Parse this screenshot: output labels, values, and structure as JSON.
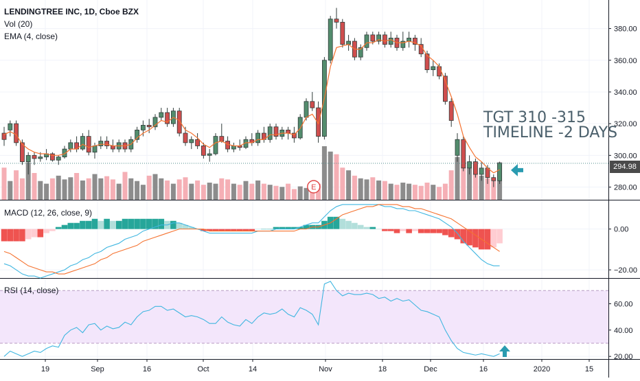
{
  "header": {
    "symbol_line": "LENDINGTREE INC, 1D, Cboe BZX",
    "volume_label": "Vol (20)",
    "ema_label": "EMA (4, close)"
  },
  "annotation": {
    "line1": "TGT 310 -315",
    "line2": "TIMELINE -2 DAYS"
  },
  "last_price": "294.98",
  "earnings_marker": "E",
  "chart_data": [
    {
      "type": "candlestick",
      "title": "LENDINGTREE INC, 1D, Cboe BZX",
      "ylim": [
        272,
        398
      ],
      "y_ticks": [
        280,
        300,
        320,
        340,
        360,
        380
      ],
      "y_tick_labels": [
        "280.00",
        "300.00",
        "320.00",
        "340.00",
        "360.00",
        "380.00"
      ],
      "x_tick_labels": [
        "19",
        "Sep",
        "16",
        "Oct",
        "14",
        "Nov",
        "18",
        "Dec",
        "16",
        "2020",
        "15"
      ],
      "candles": [
        [
          314,
          318,
          306,
          310
        ],
        [
          316,
          322,
          312,
          320
        ],
        [
          320,
          322,
          306,
          308
        ],
        [
          308,
          310,
          294,
          296
        ],
        [
          296,
          302,
          288,
          300
        ],
        [
          300,
          302,
          294,
          298
        ],
        [
          298,
          302,
          296,
          299
        ],
        [
          299,
          304,
          297,
          301
        ],
        [
          301,
          302,
          296,
          297
        ],
        [
          297,
          300,
          294,
          299
        ],
        [
          299,
          306,
          298,
          304
        ],
        [
          304,
          310,
          302,
          308
        ],
        [
          308,
          312,
          302,
          304
        ],
        [
          304,
          314,
          303,
          312
        ],
        [
          312,
          316,
          300,
          302
        ],
        [
          302,
          308,
          298,
          306
        ],
        [
          306,
          312,
          304,
          309
        ],
        [
          309,
          312,
          304,
          306
        ],
        [
          306,
          310,
          302,
          304
        ],
        [
          304,
          310,
          302,
          308
        ],
        [
          308,
          310,
          302,
          304
        ],
        [
          304,
          312,
          302,
          310
        ],
        [
          310,
          318,
          308,
          316
        ],
        [
          316,
          322,
          312,
          319
        ],
        [
          319,
          323,
          314,
          318
        ],
        [
          318,
          326,
          316,
          324
        ],
        [
          324,
          330,
          322,
          327
        ],
        [
          327,
          330,
          318,
          320
        ],
        [
          320,
          330,
          318,
          328
        ],
        [
          328,
          330,
          312,
          314
        ],
        [
          314,
          318,
          306,
          308
        ],
        [
          308,
          312,
          304,
          310
        ],
        [
          310,
          314,
          304,
          306
        ],
        [
          306,
          308,
          298,
          300
        ],
        [
          300,
          304,
          296,
          301
        ],
        [
          301,
          314,
          300,
          312
        ],
        [
          312,
          320,
          308,
          309
        ],
        [
          309,
          312,
          302,
          304
        ],
        [
          304,
          308,
          302,
          306
        ],
        [
          306,
          310,
          303,
          305
        ],
        [
          305,
          312,
          304,
          310
        ],
        [
          310,
          314,
          306,
          308
        ],
        [
          308,
          316,
          306,
          314
        ],
        [
          314,
          318,
          308,
          310
        ],
        [
          310,
          320,
          308,
          318
        ],
        [
          318,
          320,
          310,
          312
        ],
        [
          312,
          318,
          310,
          316
        ],
        [
          316,
          318,
          310,
          314
        ],
        [
          314,
          318,
          308,
          311
        ],
        [
          311,
          326,
          310,
          324
        ],
        [
          324,
          336,
          322,
          334
        ],
        [
          334,
          340,
          328,
          330
        ],
        [
          330,
          334,
          308,
          312
        ],
        [
          312,
          362,
          310,
          360
        ],
        [
          360,
          388,
          358,
          386
        ],
        [
          386,
          393,
          380,
          384
        ],
        [
          384,
          386,
          368,
          370
        ],
        [
          370,
          376,
          366,
          372
        ],
        [
          372,
          374,
          360,
          362
        ],
        [
          362,
          370,
          360,
          368
        ],
        [
          368,
          378,
          366,
          376
        ],
        [
          376,
          378,
          370,
          372
        ],
        [
          372,
          378,
          370,
          376
        ],
        [
          376,
          378,
          368,
          370
        ],
        [
          370,
          378,
          368,
          374
        ],
        [
          374,
          376,
          366,
          368
        ],
        [
          368,
          378,
          366,
          372
        ],
        [
          372,
          378,
          368,
          374
        ],
        [
          374,
          376,
          366,
          370
        ],
        [
          370,
          374,
          362,
          364
        ],
        [
          364,
          366,
          352,
          354
        ],
        [
          354,
          360,
          350,
          356
        ],
        [
          356,
          358,
          348,
          350
        ],
        [
          350,
          352,
          332,
          334
        ],
        [
          334,
          336,
          318,
          322
        ],
        [
          300,
          314,
          296,
          310
        ],
        [
          310,
          312,
          290,
          292
        ],
        [
          292,
          300,
          288,
          296
        ],
        [
          296,
          298,
          286,
          288
        ],
        [
          288,
          296,
          284,
          292
        ],
        [
          292,
          294,
          282,
          286
        ],
        [
          286,
          288,
          280,
          284
        ],
        [
          284,
          296,
          282,
          295
        ]
      ],
      "ema": [
        313,
        315,
        313,
        307,
        304,
        302,
        301,
        301,
        300,
        300,
        301,
        304,
        304,
        307,
        305,
        306,
        307,
        307,
        306,
        306,
        306,
        307,
        311,
        314,
        316,
        319,
        322,
        321,
        324,
        322,
        316,
        314,
        311,
        307,
        305,
        308,
        309,
        307,
        306,
        306,
        308,
        308,
        310,
        310,
        313,
        313,
        314,
        314,
        313,
        317,
        324,
        326,
        320,
        336,
        356,
        368,
        369,
        370,
        367,
        367,
        371,
        371,
        373,
        372,
        373,
        371,
        371,
        372,
        371,
        369,
        363,
        360,
        356,
        347,
        337,
        326,
        312,
        305,
        299,
        296,
        292,
        289,
        291
      ],
      "volume": [
        60,
        35,
        55,
        40,
        70,
        50,
        35,
        30,
        40,
        45,
        38,
        42,
        50,
        36,
        40,
        48,
        40,
        44,
        38,
        30,
        52,
        40,
        35,
        28,
        45,
        48,
        40,
        36,
        30,
        38,
        42,
        30,
        36,
        28,
        32,
        30,
        40,
        38,
        30,
        28,
        35,
        30,
        36,
        30,
        28,
        26,
        24,
        30,
        20,
        25,
        22,
        18,
        30,
        100,
        90,
        85,
        60,
        55,
        45,
        40,
        38,
        42,
        36,
        35,
        30,
        28,
        32,
        30,
        28,
        26,
        32,
        28,
        24,
        30,
        55,
        80,
        70,
        60,
        50,
        45,
        40,
        35,
        70
      ]
    },
    {
      "type": "line",
      "title": "MACD (12, 26, close, 9)",
      "ylim": [
        -24,
        14
      ],
      "y_ticks": [
        0,
        -20
      ],
      "y_tick_labels": [
        "0.00",
        "−20.00"
      ],
      "series": [
        {
          "name": "MACD",
          "values": [
            -17,
            -18,
            -20,
            -22,
            -23,
            -23,
            -24,
            -23,
            -22,
            -21,
            -20,
            -18,
            -17,
            -15,
            -14,
            -12,
            -11,
            -9,
            -8,
            -7,
            -5,
            -4,
            -3,
            -1,
            0,
            1,
            2,
            2,
            3,
            3,
            2,
            1,
            0,
            -1,
            -2,
            -2,
            -2,
            -2,
            -2,
            -2,
            -2,
            -2,
            -1,
            -1,
            -1,
            0,
            0,
            0,
            0,
            1,
            2,
            3,
            3,
            6,
            9,
            11,
            12,
            12,
            12,
            12,
            12,
            12,
            12,
            11,
            11,
            10,
            10,
            9,
            9,
            8,
            7,
            6,
            5,
            3,
            1,
            -2,
            -6,
            -9,
            -12,
            -15,
            -17,
            -18,
            -18
          ]
        },
        {
          "name": "Signal",
          "values": [
            -11,
            -12,
            -14,
            -16,
            -18,
            -19,
            -20,
            -21,
            -21,
            -22,
            -22,
            -21,
            -20,
            -19,
            -18,
            -17,
            -15,
            -14,
            -12,
            -11,
            -10,
            -9,
            -8,
            -6,
            -5,
            -4,
            -3,
            -2,
            -1,
            0,
            0,
            0,
            0,
            0,
            -1,
            -1,
            -1,
            -1,
            -1,
            -1,
            -1,
            -1,
            -1,
            -1,
            -1,
            -1,
            -1,
            -1,
            -1,
            0,
            0,
            1,
            1,
            2,
            3,
            5,
            7,
            8,
            9,
            10,
            11,
            11,
            12,
            12,
            12,
            12,
            11,
            11,
            10,
            10,
            9,
            8,
            7,
            6,
            5,
            3,
            1,
            -1,
            -3,
            -5,
            -7,
            -9,
            -11
          ]
        }
      ],
      "histogram": [
        -6,
        -6,
        -6,
        -6,
        -5,
        -4,
        -4,
        -2,
        -1,
        1,
        2,
        3,
        3,
        4,
        4,
        5,
        4,
        5,
        4,
        4,
        5,
        5,
        5,
        5,
        5,
        5,
        5,
        4,
        4,
        3,
        2,
        1,
        0,
        -1,
        -1,
        -1,
        -1,
        -1,
        -1,
        -1,
        -1,
        -1,
        0,
        0,
        0,
        1,
        1,
        1,
        1,
        1,
        2,
        2,
        2,
        4,
        6,
        6,
        5,
        4,
        3,
        2,
        1,
        1,
        0,
        -1,
        -1,
        -2,
        -1,
        -2,
        -1,
        -2,
        -2,
        -2,
        -2,
        -3,
        -4,
        -5,
        -7,
        -8,
        -9,
        -10,
        -10,
        -9,
        -7
      ]
    },
    {
      "type": "line",
      "title": "RSI (14, close)",
      "ylim": [
        18,
        79
      ],
      "y_ticks": [
        60,
        40,
        20
      ],
      "y_tick_labels": [
        "60.00",
        "40.00",
        "20.00"
      ],
      "bands": [
        30,
        70
      ],
      "series": [
        {
          "name": "RSI",
          "values": [
            20,
            24,
            22,
            20,
            22,
            24,
            23,
            26,
            28,
            27,
            36,
            40,
            42,
            38,
            44,
            45,
            40,
            43,
            41,
            42,
            46,
            44,
            50,
            54,
            55,
            58,
            58,
            55,
            56,
            53,
            50,
            51,
            50,
            48,
            45,
            45,
            50,
            46,
            44,
            43,
            48,
            45,
            50,
            53,
            52,
            53,
            56,
            52,
            50,
            57,
            55,
            52,
            44,
            75,
            77,
            70,
            66,
            68,
            67,
            67,
            68,
            67,
            64,
            65,
            62,
            64,
            62,
            63,
            59,
            55,
            54,
            52,
            50,
            40,
            32,
            26,
            23,
            22,
            21,
            22,
            21,
            20,
            22
          ]
        }
      ]
    }
  ]
}
